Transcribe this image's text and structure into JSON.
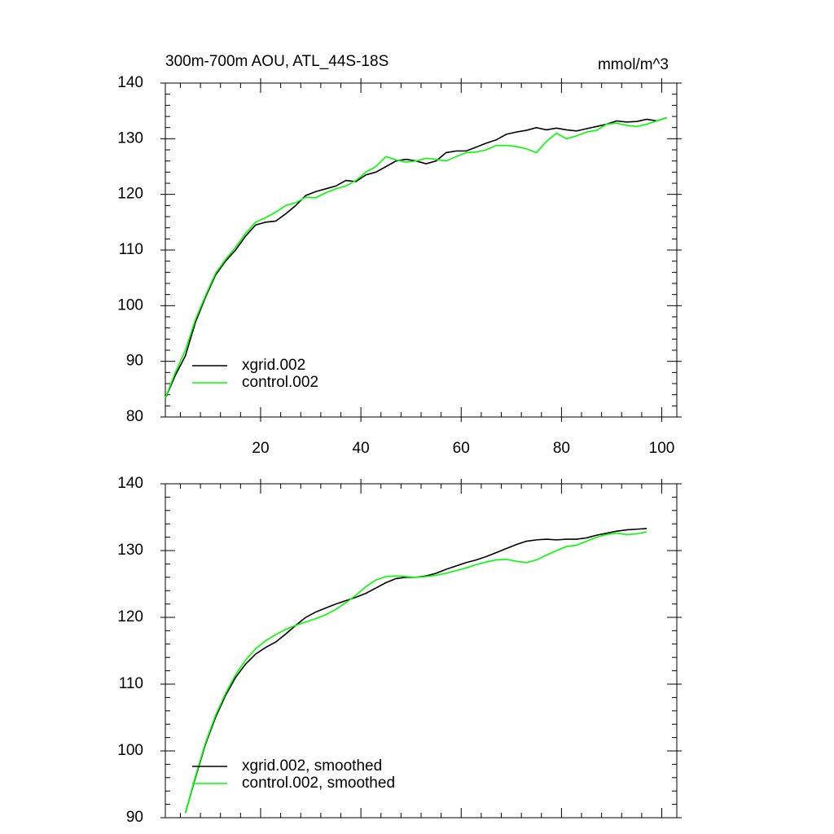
{
  "chart_data": [
    {
      "type": "line",
      "title": "300m-700m AOU, ATL_44S-18S",
      "subtitle": "mmol/m^3",
      "xlim": [
        1,
        103
      ],
      "xticks": [
        20,
        40,
        60,
        80,
        100
      ],
      "ylim": [
        80,
        140
      ],
      "yticks": [
        80,
        90,
        100,
        110,
        120,
        130,
        140
      ],
      "legend": "lower left",
      "x": [
        1,
        3,
        5,
        7,
        9,
        11,
        13,
        15,
        17,
        19,
        21,
        23,
        25,
        27,
        29,
        31,
        33,
        35,
        37,
        39,
        41,
        43,
        45,
        47,
        49,
        51,
        53,
        55,
        57,
        59,
        61,
        63,
        65,
        67,
        69,
        71,
        73,
        75,
        77,
        79,
        81,
        83,
        85,
        87,
        89,
        91,
        93,
        95,
        97,
        99,
        101
      ],
      "series": [
        {
          "name": "xgrid.002",
          "color": "#000000",
          "values": [
            83.4,
            87.5,
            91,
            97,
            101.5,
            105.5,
            108,
            110,
            112.5,
            114.5,
            115,
            115.2,
            116.5,
            118,
            119.8,
            120.5,
            121,
            121.5,
            122.5,
            122.3,
            123.5,
            124,
            125,
            126,
            126.3,
            126,
            125.5,
            126,
            127.5,
            127.8,
            127.8,
            128.5,
            129.2,
            129.8,
            130.8,
            131.2,
            131.5,
            132,
            131.6,
            131.9,
            131.6,
            131.4,
            131.8,
            132.2,
            132.6,
            133.2,
            133,
            133.1,
            133.5,
            133.2,
            133.8
          ]
        },
        {
          "name": "control.002",
          "color": "#00ff00",
          "values": [
            83.4,
            88,
            92,
            97.5,
            101.8,
            105.8,
            108.3,
            110.5,
            113,
            115,
            115.8,
            116.8,
            118,
            118.5,
            119.5,
            119.4,
            120.3,
            121,
            121.5,
            122.5,
            124,
            125,
            126.8,
            126.2,
            125.8,
            126,
            126.5,
            126.3,
            126,
            126.8,
            127.5,
            127.6,
            128,
            128.8,
            128.8,
            128.6,
            128.2,
            127.5,
            129.5,
            131,
            130,
            130.5,
            131.2,
            131.5,
            132.6,
            132.8,
            132.4,
            132.2,
            132.6,
            133.2,
            133.8
          ]
        }
      ]
    },
    {
      "type": "line",
      "xlim": [
        1,
        103
      ],
      "ylim": [
        90,
        140
      ],
      "yticks": [
        90,
        100,
        110,
        120,
        130,
        140
      ],
      "legend": "lower left",
      "x": [
        5,
        7,
        9,
        11,
        13,
        15,
        17,
        19,
        21,
        23,
        25,
        27,
        29,
        31,
        33,
        35,
        37,
        39,
        41,
        43,
        45,
        47,
        49,
        51,
        53,
        55,
        57,
        59,
        61,
        63,
        65,
        67,
        69,
        71,
        73,
        75,
        77,
        79,
        81,
        83,
        85,
        87,
        89,
        91,
        93,
        95,
        97
      ],
      "series": [
        {
          "name": "xgrid.002, smoothed",
          "color": "#000000",
          "values": [
            90.7,
            96,
            101,
            105,
            108.3,
            111,
            113,
            114.5,
            115.5,
            116.3,
            117.5,
            118.8,
            120,
            120.8,
            121.4,
            122,
            122.5,
            123,
            123.6,
            124.4,
            125.2,
            125.8,
            126,
            126,
            126.2,
            126.6,
            127.2,
            127.7,
            128.2,
            128.6,
            129.1,
            129.7,
            130.3,
            130.9,
            131.4,
            131.6,
            131.7,
            131.6,
            131.7,
            131.7,
            131.9,
            132.3,
            132.6,
            132.9,
            133.1,
            133.2,
            133.3
          ]
        },
        {
          "name": "control.002, smoothed",
          "color": "#00ff00",
          "values": [
            90.7,
            96.2,
            101.2,
            105.3,
            108.6,
            111.4,
            113.6,
            115.3,
            116.5,
            117.4,
            118.2,
            118.8,
            119.3,
            119.8,
            120.4,
            121.2,
            122.2,
            123.3,
            124.6,
            125.6,
            126.1,
            126.2,
            126.1,
            126,
            126.1,
            126.3,
            126.6,
            127,
            127.4,
            127.9,
            128.3,
            128.6,
            128.7,
            128.4,
            128.2,
            128.6,
            129.3,
            130,
            130.6,
            130.8,
            131.4,
            132,
            132.4,
            132.6,
            132.4,
            132.5,
            132.8
          ]
        }
      ]
    }
  ]
}
